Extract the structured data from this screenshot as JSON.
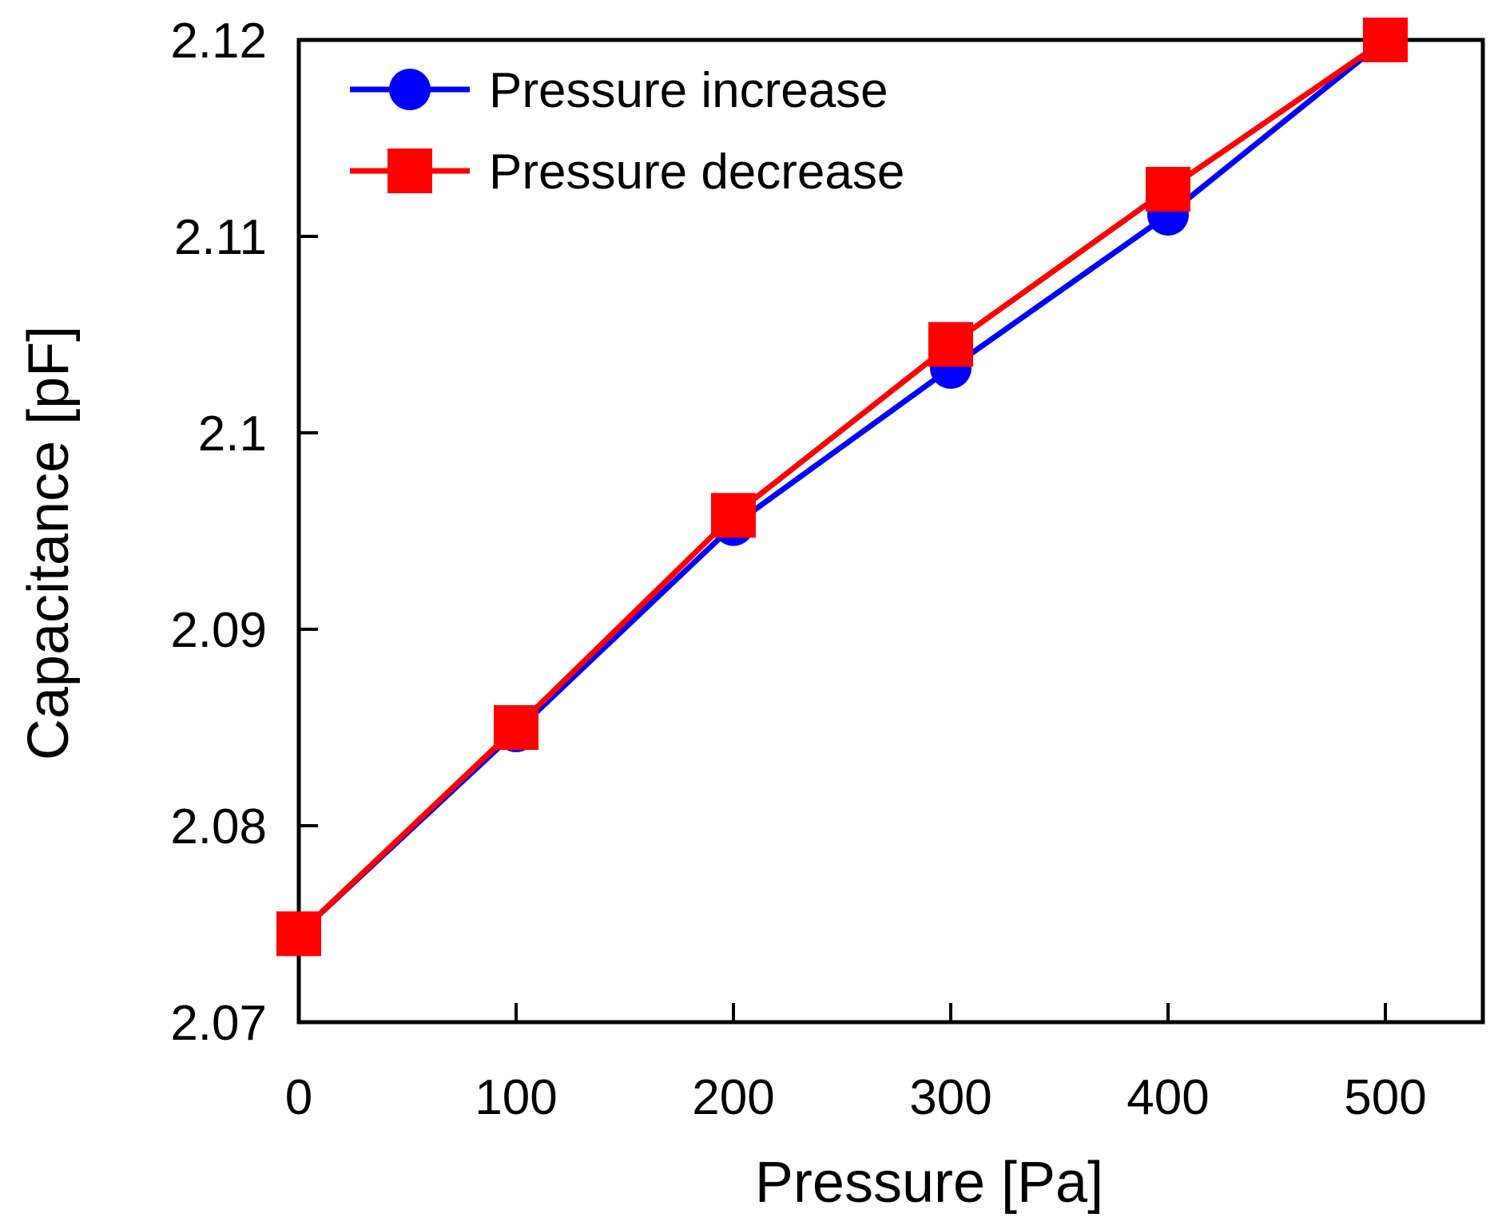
{
  "chart_data": {
    "type": "line",
    "title": "",
    "xlabel": "Pressure [Pa]",
    "ylabel": "Capacitance [pF]",
    "x": [
      0,
      100,
      200,
      300,
      400,
      500
    ],
    "xlim": [
      0,
      550
    ],
    "ylim": [
      2.07,
      2.12
    ],
    "xticks": [
      "0",
      "100",
      "200",
      "300",
      "400",
      "500"
    ],
    "xtick_values": [
      0,
      100,
      200,
      300,
      400,
      500
    ],
    "yticks": [
      "2.07",
      "2.08",
      "2.09",
      "2.1",
      "2.11",
      "2.12"
    ],
    "ytick_values": [
      2.07,
      2.08,
      2.09,
      2.1,
      2.11,
      2.12
    ],
    "grid": false,
    "legend_position": "top-left",
    "series": [
      {
        "name": "Pressure increase",
        "color": "#0000ff",
        "marker": "circle",
        "values": [
          2.0745,
          2.0848,
          2.0953,
          2.1033,
          2.1111,
          2.12
        ]
      },
      {
        "name": "Pressure decrease",
        "color": "#ff0000",
        "marker": "square",
        "values": [
          2.0745,
          2.085,
          2.0958,
          2.1045,
          2.1124,
          2.12
        ]
      }
    ]
  }
}
